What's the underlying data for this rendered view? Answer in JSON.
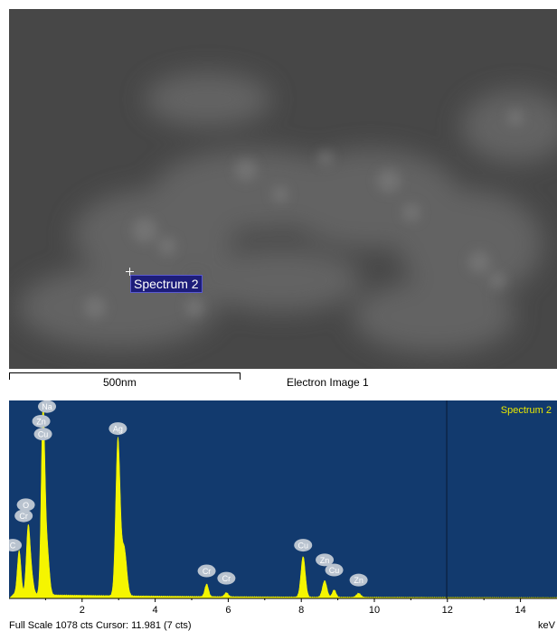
{
  "image": {
    "marker_label": "Spectrum 2",
    "scale_text": "500nm",
    "title": "Electron Image 1"
  },
  "chart_data": {
    "type": "area",
    "title": "Spectrum 2",
    "xlabel": "keV",
    "xlim": [
      0,
      15
    ],
    "ylim": [
      0,
      1078
    ],
    "x_ticks": [
      2,
      4,
      6,
      8,
      10,
      12,
      14
    ],
    "x_tick_labels": [
      "2",
      "4",
      "6",
      "8",
      "10",
      "12",
      "14"
    ],
    "cursor_x": 11.981,
    "status": "Full Scale 1078 cts Cursor: 11.981  (7 cts)",
    "peaks": [
      {
        "x": 0.277,
        "y": 240,
        "w": 0.05
      },
      {
        "x": 0.52,
        "y": 330,
        "w": 0.05
      },
      {
        "x": 0.93,
        "y": 1000,
        "w": 0.05
      },
      {
        "x": 0.6,
        "y": 120,
        "w": 0.06
      },
      {
        "x": 1.04,
        "y": 250,
        "w": 0.06
      },
      {
        "x": 2.98,
        "y": 850,
        "w": 0.06
      },
      {
        "x": 3.15,
        "y": 260,
        "w": 0.07
      },
      {
        "x": 5.41,
        "y": 68,
        "w": 0.05
      },
      {
        "x": 5.95,
        "y": 22,
        "w": 0.05
      },
      {
        "x": 8.05,
        "y": 222,
        "w": 0.06
      },
      {
        "x": 8.64,
        "y": 90,
        "w": 0.06
      },
      {
        "x": 8.9,
        "y": 40,
        "w": 0.05
      },
      {
        "x": 9.57,
        "y": 22,
        "w": 0.06
      }
    ],
    "background": {
      "level": 20,
      "decay": 0.18
    },
    "colors": {
      "plot_bg": "#123a6e",
      "fill": "#f5f500",
      "label": "#e8e800",
      "cursor": "#0a1a33"
    },
    "annotations": [
      {
        "label": "Na",
        "x": 1.04,
        "y": 1045
      },
      {
        "label": "Zn",
        "x": 0.88,
        "y": 965
      },
      {
        "label": "Cu",
        "x": 0.93,
        "y": 895
      },
      {
        "label": "Ag",
        "x": 2.98,
        "y": 925
      },
      {
        "label": "O",
        "x": 0.46,
        "y": 510
      },
      {
        "label": "Cr",
        "x": 0.4,
        "y": 450
      },
      {
        "label": "C",
        "x": 0.1,
        "y": 290
      },
      {
        "label": "Cr",
        "x": 5.41,
        "y": 150
      },
      {
        "label": "Cr",
        "x": 5.95,
        "y": 110
      },
      {
        "label": "Cu",
        "x": 8.05,
        "y": 290
      },
      {
        "label": "Zn",
        "x": 8.64,
        "y": 210
      },
      {
        "label": "Cu",
        "x": 8.9,
        "y": 155
      },
      {
        "label": "Zn",
        "x": 9.57,
        "y": 100
      }
    ]
  }
}
